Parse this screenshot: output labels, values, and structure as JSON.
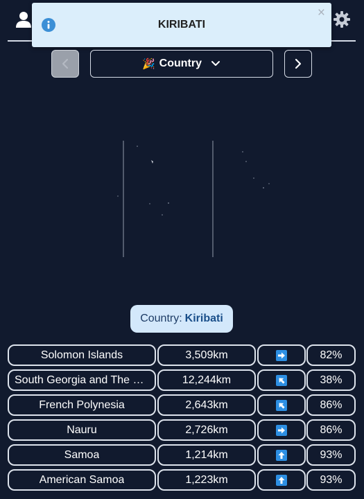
{
  "header": {
    "user_icon": "user-icon",
    "settings_icon": "gear-icon"
  },
  "toast": {
    "title": "KIRIBATI",
    "icon": "info-icon",
    "close_label": "×"
  },
  "nav": {
    "prev_icon": "chevron-left-icon",
    "next_icon": "chevron-right-icon",
    "mode_emoji": "🎉",
    "mode_label": "Country",
    "dropdown_icon": "chevron-down-icon"
  },
  "answer": {
    "prefix": "Country:",
    "name": "Kiribati"
  },
  "guesses": [
    {
      "name": "Solomon Islands",
      "distance": "3,509km",
      "direction": "right",
      "percent": "82%"
    },
    {
      "name": "South Georgia and The S...",
      "distance": "12,244km",
      "direction": "up-left",
      "percent": "38%"
    },
    {
      "name": "French Polynesia",
      "distance": "2,643km",
      "direction": "up-left",
      "percent": "86%"
    },
    {
      "name": "Nauru",
      "distance": "2,726km",
      "direction": "right",
      "percent": "86%"
    },
    {
      "name": "Samoa",
      "distance": "1,214km",
      "direction": "up",
      "percent": "93%"
    },
    {
      "name": "American Samoa",
      "distance": "1,223km",
      "direction": "up",
      "percent": "93%"
    }
  ],
  "colors": {
    "background": "#111a2e",
    "toast_bg": "#dbeefb",
    "info_blue": "#3b8fd6",
    "arrow_blue": "#2d8fe3",
    "answer_bg": "#d3e8fb",
    "border": "#dde3ec"
  }
}
